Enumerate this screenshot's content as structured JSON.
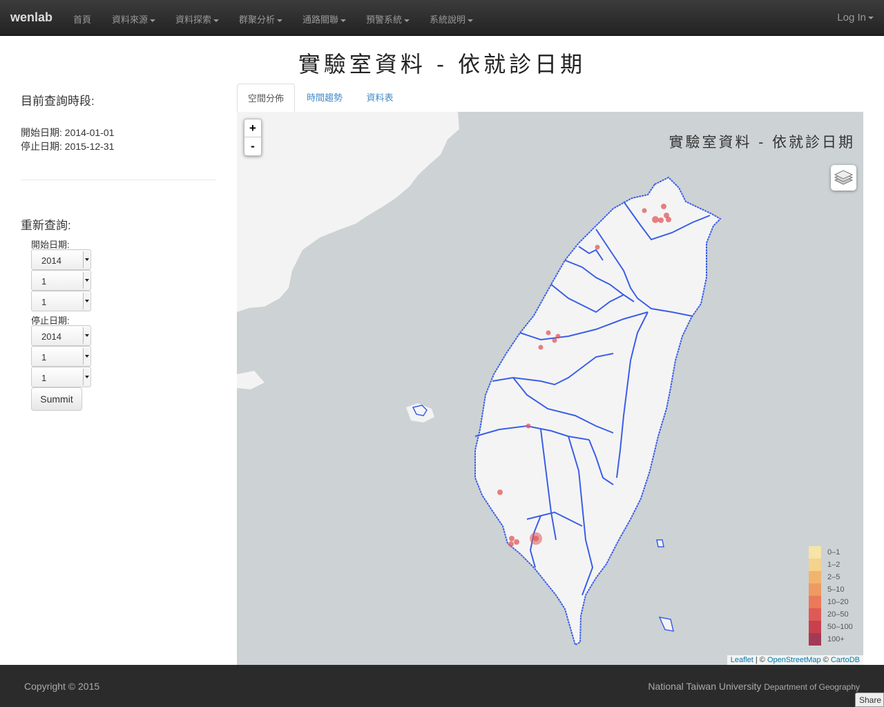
{
  "navbar": {
    "brand": "wenlab",
    "items": [
      "首頁",
      "資料來源",
      "資料探索",
      "群聚分析",
      "通路關聯",
      "預警系統",
      "系統說明"
    ],
    "login": "Log In"
  },
  "page_title": "實驗室資料 - 依就診日期",
  "sidebar": {
    "current_heading": "目前查詢時段:",
    "start_label": "開始日期:",
    "start_value": "2014-01-01",
    "end_label": "停止日期:",
    "end_value": "2015-12-31",
    "requery_heading": "重新查詢:",
    "start_field_label": "開始日期:",
    "start_selects": [
      "2014",
      "1",
      "1"
    ],
    "end_field_label": "停止日期:",
    "end_selects": [
      "2014",
      "1",
      "1"
    ],
    "submit_label": "Summit"
  },
  "tabs": [
    "空間分佈",
    "時間趨勢",
    "資料表"
  ],
  "map": {
    "zoom_in": "+",
    "zoom_out": "-",
    "title": "實驗室資料 - 依就診日期",
    "legend": [
      {
        "label": "0–1",
        "color": "#f6e4a8"
      },
      {
        "label": "1–2",
        "color": "#f4d38c"
      },
      {
        "label": "2–5",
        "color": "#f1b46f"
      },
      {
        "label": "5–10",
        "color": "#ee9a62"
      },
      {
        "label": "10–20",
        "color": "#ea7a5a"
      },
      {
        "label": "20–50",
        "color": "#e05a55"
      },
      {
        "label": "50–100",
        "color": "#c9404f"
      },
      {
        "label": "100+",
        "color": "#a33a55"
      }
    ],
    "attribution": {
      "leaflet": "Leaflet",
      "sep1": " | © ",
      "osm": "OpenStreetMap",
      "sep2": " © ",
      "carto": "CartoDB"
    },
    "marker_color": "#e0585a",
    "boundary_color": "#3a5ee8"
  },
  "footer": {
    "copyright": "Copyright © 2015",
    "university": "National Taiwan University",
    "department": "Department of Geography",
    "share": "Share"
  }
}
